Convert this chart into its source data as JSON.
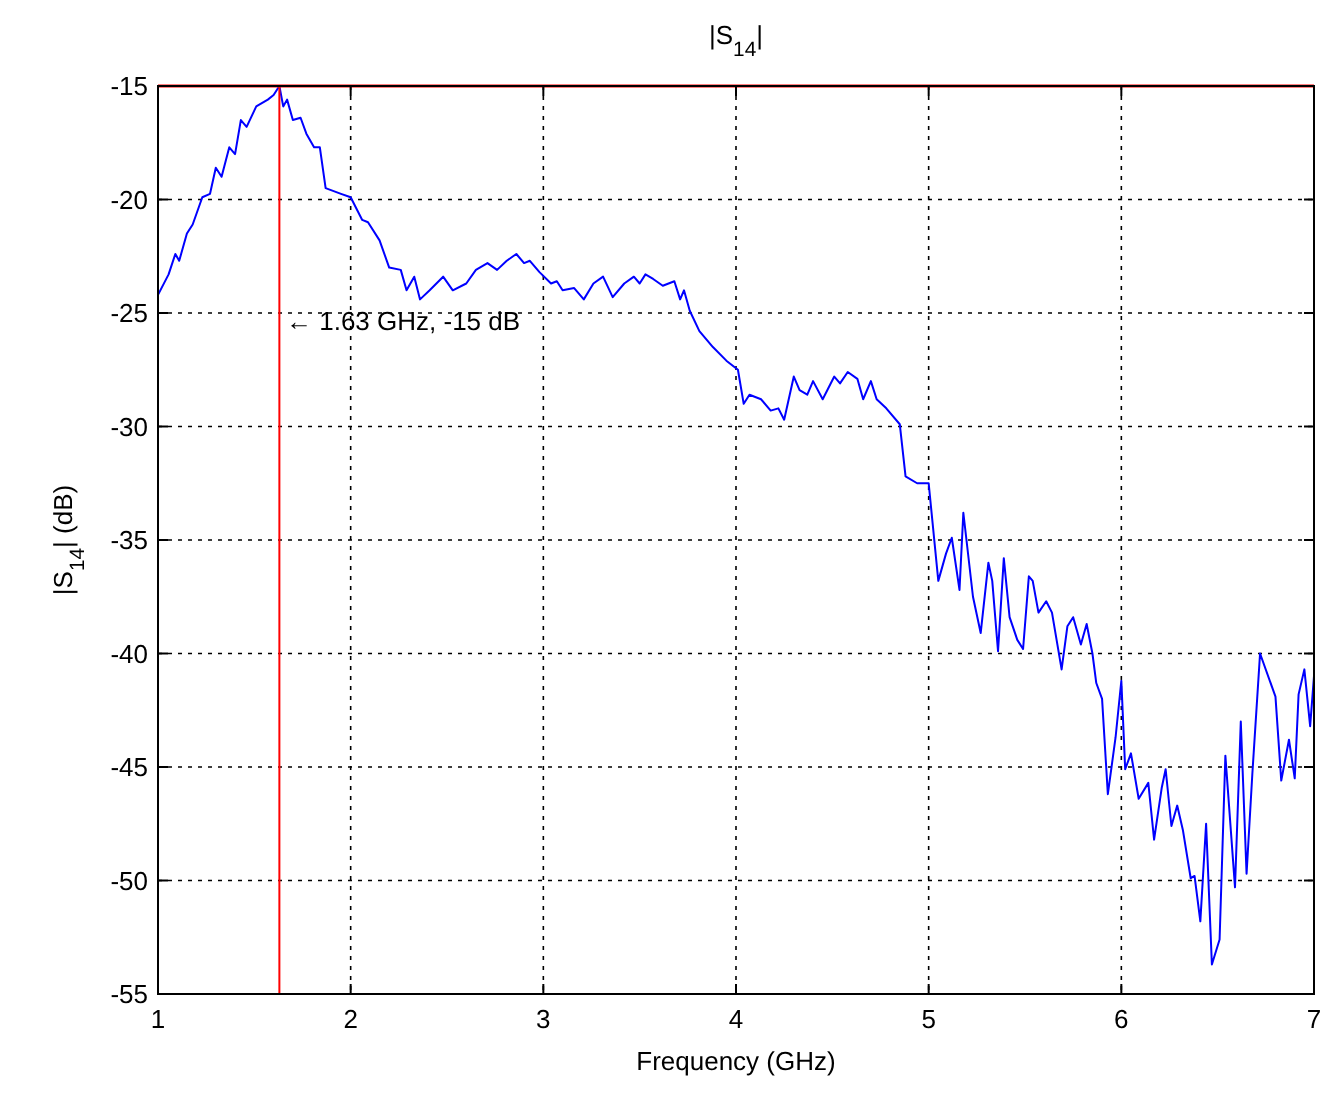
{
  "chart_data": {
    "type": "line",
    "title": "|S$_{14}$|",
    "xlabel": "Frequency (GHz)",
    "ylabel": "|S$_{14}$| (dB)",
    "xlim": [
      1,
      7
    ],
    "xticks": [
      1,
      2,
      3,
      4,
      5,
      6,
      7
    ],
    "ylim": [
      -55,
      -15
    ],
    "yticks": [
      -55,
      -50,
      -45,
      -40,
      -35,
      -30,
      -25,
      -20,
      -15
    ],
    "grid": true,
    "ref_lines": [
      {
        "axis": "y",
        "value": -15,
        "color": "#ff0000"
      },
      {
        "axis": "x",
        "value": 1.63,
        "color": "#ff0000"
      }
    ],
    "annotations": [
      "← 1.63 GHz, -15 dB"
    ],
    "series": [
      {
        "color": "#0000ff",
        "x": [
          1.0,
          1.055,
          1.09,
          1.11,
          1.15,
          1.18,
          1.23,
          1.27,
          1.3,
          1.33,
          1.37,
          1.4,
          1.43,
          1.46,
          1.51,
          1.57,
          1.6,
          1.63,
          1.65,
          1.67,
          1.7,
          1.74,
          1.77,
          1.81,
          1.84,
          1.87,
          1.95,
          2.0,
          2.06,
          2.09,
          2.15,
          2.2,
          2.26,
          2.29,
          2.33,
          2.36,
          2.41,
          2.48,
          2.53,
          2.6,
          2.65,
          2.71,
          2.76,
          2.81,
          2.86,
          2.9,
          2.93,
          2.98,
          3.04,
          3.07,
          3.1,
          3.16,
          3.21,
          3.26,
          3.31,
          3.36,
          3.42,
          3.47,
          3.5,
          3.53,
          3.57,
          3.62,
          3.68,
          3.71,
          3.73,
          3.76,
          3.81,
          3.88,
          3.95,
          4.01,
          4.04,
          4.07,
          4.13,
          4.18,
          4.22,
          4.25,
          4.3,
          4.33,
          4.37,
          4.4,
          4.45,
          4.51,
          4.54,
          4.58,
          4.63,
          4.66,
          4.7,
          4.73,
          4.78,
          4.85,
          4.88,
          4.94,
          5.0,
          5.05,
          5.09,
          5.12,
          5.16,
          5.18,
          5.23,
          5.27,
          5.31,
          5.33,
          5.36,
          5.39,
          5.42,
          5.46,
          5.49,
          5.52,
          5.54,
          5.57,
          5.61,
          5.64,
          5.69,
          5.72,
          5.75,
          5.79,
          5.82,
          5.85,
          5.87,
          5.9,
          5.93,
          5.97,
          6.0,
          6.02,
          6.05,
          6.09,
          6.14,
          6.17,
          6.21,
          6.23,
          6.26,
          6.29,
          6.32,
          6.36,
          6.38,
          6.41,
          6.44,
          6.47,
          6.51,
          6.54,
          6.59,
          6.62,
          6.65,
          6.68,
          6.72,
          6.8,
          6.83,
          6.87,
          6.9,
          6.92,
          6.95,
          6.98,
          7.0
        ],
        "values": [
          -24.2,
          -23.3,
          -22.4,
          -22.7,
          -21.5,
          -21.1,
          -19.9,
          -19.75,
          -18.6,
          -19.0,
          -17.7,
          -18.0,
          -16.5,
          -16.8,
          -15.9,
          -15.6,
          -15.4,
          -15,
          -15.9,
          -15.6,
          -16.5,
          -16.4,
          -17.1,
          -17.7,
          -17.7,
          -19.5,
          -19.75,
          -19.9,
          -20.9,
          -21,
          -21.8,
          -23.0,
          -23.1,
          -24.0,
          -23.4,
          -24.4,
          -24.0,
          -23.4,
          -24.0,
          -23.7,
          -23.1,
          -22.8,
          -23.1,
          -22.7,
          -22.4,
          -22.8,
          -22.7,
          -23.2,
          -23.7,
          -23.6,
          -24.0,
          -23.9,
          -24.4,
          -23.7,
          -23.4,
          -24.3,
          -23.7,
          -23.4,
          -23.7,
          -23.3,
          -23.5,
          -23.8,
          -23.6,
          -24.4,
          -24.0,
          -24.9,
          -25.8,
          -26.5,
          -27.1,
          -27.5,
          -29.0,
          -28.6,
          -28.8,
          -29.3,
          -29.2,
          -29.7,
          -27.8,
          -28.4,
          -28.6,
          -28.0,
          -28.8,
          -27.8,
          -28.1,
          -27.6,
          -27.9,
          -28.8,
          -28.0,
          -28.8,
          -29.2,
          -29.9,
          -32.2,
          -32.5,
          -32.5,
          -36.8,
          -35.6,
          -34.9,
          -37.2,
          -33.8,
          -37.5,
          -39.1,
          -36.0,
          -36.8,
          -39.9,
          -35.8,
          -38.4,
          -39.4,
          -39.8,
          -36.6,
          -36.8,
          -38.2,
          -37.7,
          -38.2,
          -40.7,
          -38.8,
          -38.4,
          -39.6,
          -38.7,
          -40.0,
          -41.3,
          -42.0,
          -46.2,
          -43.7,
          -41.2,
          -45.1,
          -44.4,
          -46.4,
          -45.7,
          -48.2,
          -45.9,
          -45.1,
          -47.6,
          -46.7,
          -47.8,
          -49.9,
          -49.8,
          -51.8,
          -47.5,
          -53.7,
          -52.6,
          -44.5,
          -50.3,
          -43.0,
          -49.7,
          -45.3,
          -40.0,
          -41.9,
          -45.6,
          -43.8,
          -45.5,
          -41.8,
          -40.7,
          -43.2,
          -41.0
        ]
      }
    ]
  }
}
